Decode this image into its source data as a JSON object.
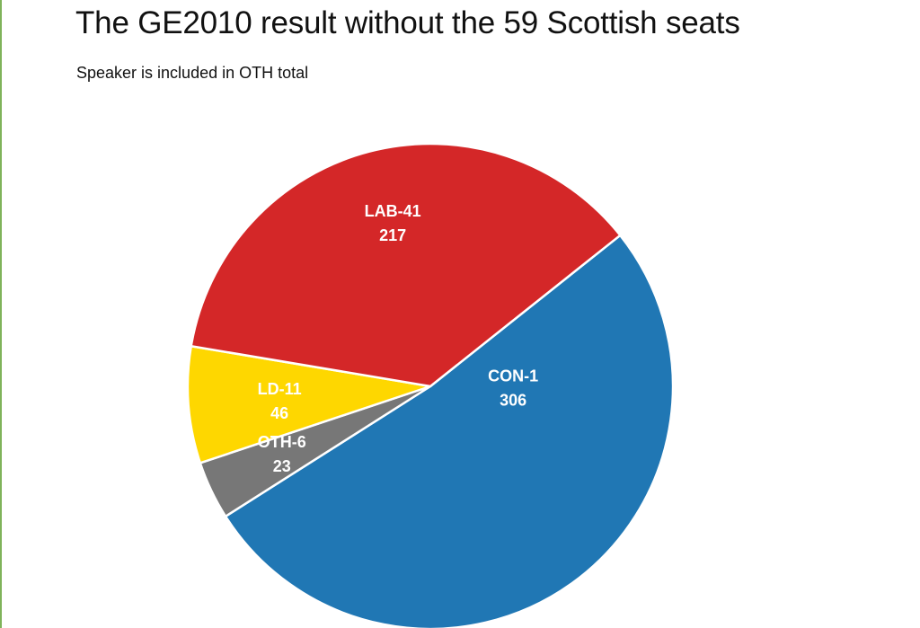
{
  "chart_data": {
    "type": "pie",
    "title": "The GE2010 result without the 59 Scottish seats",
    "subtitle": "Speaker is included in OTH total",
    "slices": [
      {
        "name": "CON-1",
        "value": 306,
        "color": "#2077b4"
      },
      {
        "name": "OTH-6",
        "value": 23,
        "color": "#777777"
      },
      {
        "name": "LD-11",
        "value": 46,
        "color": "#fed700"
      },
      {
        "name": "LAB-41",
        "value": 217,
        "color": "#d42728"
      }
    ]
  }
}
